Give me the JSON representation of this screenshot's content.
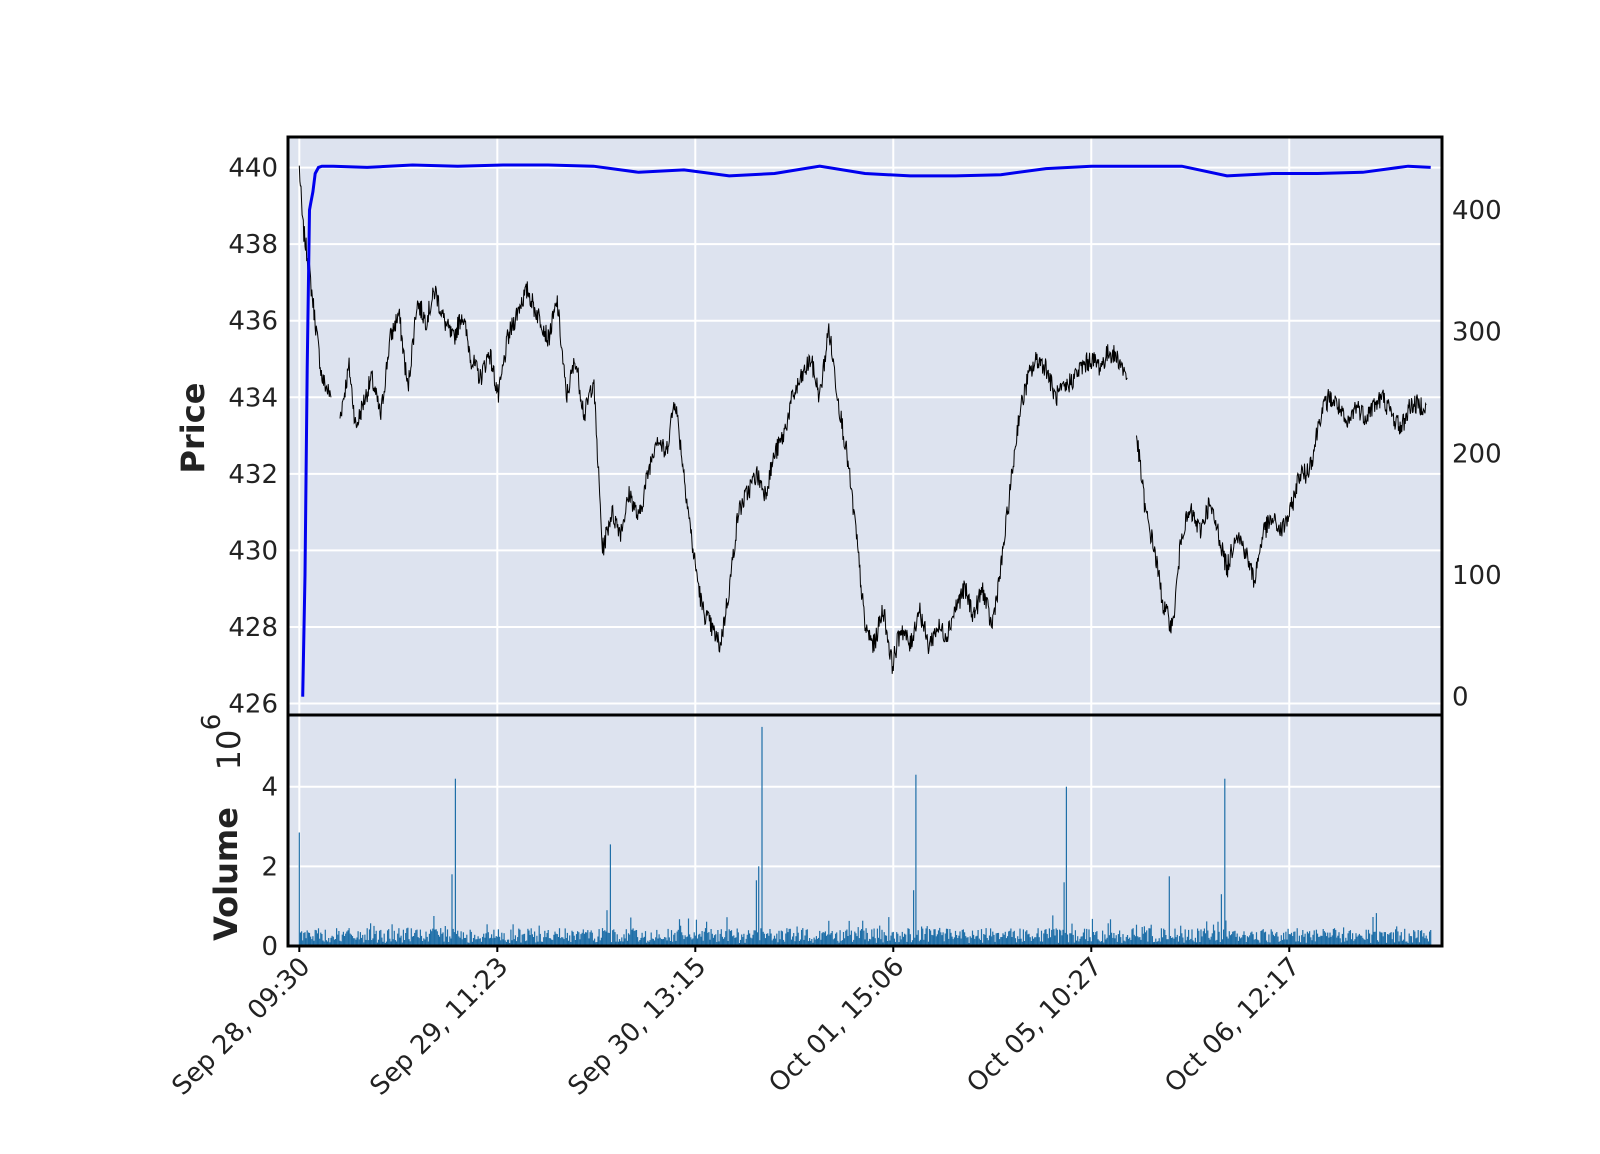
{
  "chart_data": {
    "type": "financial-line-volume",
    "background_color": "#ffffff",
    "panel_color": "#dde3ef",
    "grid": true,
    "grid_color": "#ffffff",
    "price_panel": {
      "ylabel": "Price",
      "ylim": [
        425.7,
        440.8
      ],
      "yticks": [
        426,
        428,
        430,
        432,
        434,
        436,
        438,
        440
      ],
      "ytick_labels": [
        "426",
        "428",
        "430",
        "432",
        "434",
        "436",
        "438",
        "440"
      ],
      "right_axis": {
        "ylim": [
          -15,
          460
        ],
        "yticks": [
          0,
          100,
          200,
          300,
          400
        ],
        "ytick_labels": [
          "0",
          "100",
          "200",
          "300",
          "400"
        ]
      },
      "series": [
        {
          "kind": "price",
          "color": "#000000",
          "axis": "left",
          "x": [
            0,
            3,
            8,
            14,
            20,
            28,
            36,
            44,
            50,
            56,
            64,
            72,
            80,
            88,
            96,
            104,
            112,
            120,
            128,
            136,
            144,
            152,
            160,
            168,
            176,
            184,
            190,
            196,
            202,
            208,
            214,
            220,
            228,
            236,
            244,
            252,
            260,
            268,
            276,
            284,
            292,
            300,
            308,
            316,
            324,
            332,
            340,
            348,
            356,
            364,
            372,
            380,
            388,
            396,
            404,
            412,
            420,
            428,
            436,
            444,
            452,
            460,
            468,
            476,
            484,
            492,
            500,
            508,
            516,
            524,
            532,
            540,
            548,
            556,
            564,
            572,
            580,
            588,
            596,
            604,
            612,
            620,
            628,
            636,
            644,
            652,
            660,
            668,
            676,
            684,
            692,
            700,
            708,
            716,
            724,
            732,
            740,
            748,
            756,
            764,
            772,
            780,
            788,
            796,
            804,
            812,
            820,
            828,
            836,
            844,
            852,
            860,
            868,
            876,
            884,
            890,
            896,
            902,
            910,
            918,
            926,
            934,
            942,
            950,
            958,
            966,
            974,
            982,
            996
          ],
          "y": [
            440.0,
            438.5,
            437.5,
            436.0,
            434.5,
            434.0,
            433.5,
            434.8,
            433.2,
            433.8,
            434.5,
            433.5,
            435.5,
            436.2,
            434.2,
            436.5,
            436.0,
            436.8,
            436.0,
            435.5,
            436.2,
            435.0,
            434.5,
            435.2,
            434.0,
            435.5,
            436.0,
            436.5,
            436.8,
            436.3,
            436.0,
            435.5,
            436.5,
            434.0,
            435.0,
            433.5,
            434.5,
            430.0,
            431.0,
            430.5,
            431.5,
            430.8,
            432.0,
            433.0,
            432.5,
            434.0,
            432.0,
            430.0,
            428.5,
            428.0,
            427.5,
            429.0,
            431.0,
            431.5,
            432.0,
            431.5,
            432.5,
            433.0,
            434.0,
            434.5,
            435.0,
            434.0,
            435.8,
            434.0,
            432.5,
            430.5,
            428.0,
            427.5,
            428.5,
            427.0,
            428.0,
            427.5,
            428.5,
            427.5,
            428.0,
            427.8,
            428.5,
            429.0,
            428.3,
            429.0,
            428.0,
            429.5,
            431.5,
            433.5,
            434.5,
            435.0,
            434.8,
            434.0,
            434.2,
            434.5,
            434.8,
            435.0,
            434.8,
            435.2,
            435.0,
            434.5,
            433.0,
            431.0,
            430.0,
            428.5,
            428.0,
            430.5,
            431.0,
            430.5,
            431.2,
            430.5,
            429.5,
            430.5,
            430.0,
            429.2,
            430.5,
            430.8,
            430.5,
            431.0,
            432.0,
            432.0,
            432.5,
            433.5,
            434.0,
            433.8,
            433.2,
            433.8,
            433.5,
            433.8,
            434.0,
            433.5,
            433.2,
            433.8,
            433.8
          ],
          "gaps_after": [
            5,
            95
          ]
        },
        {
          "kind": "moving-average",
          "color": "#0000ee",
          "axis": "right",
          "x": [
            3,
            5,
            7,
            9,
            10,
            12,
            14,
            17,
            20,
            30,
            60,
            100,
            140,
            180,
            220,
            260,
            300,
            340,
            380,
            420,
            460,
            500,
            540,
            580,
            620,
            660,
            700,
            740,
            780,
            820,
            860,
            900,
            940,
            980,
            1000
          ],
          "y": [
            0,
            100,
            270,
            400,
            405,
            415,
            430,
            435,
            436,
            436,
            435,
            437,
            436,
            437,
            437,
            436,
            431,
            433,
            428,
            430,
            436,
            430,
            428,
            428,
            429,
            434,
            436,
            436,
            436,
            428,
            430,
            430,
            431,
            436,
            435
          ]
        }
      ]
    },
    "volume_panel": {
      "ylabel": "Volume",
      "exponent_label": "10",
      "exponent_power": "6",
      "ylim": [
        0,
        5.8
      ],
      "yticks": [
        0,
        2,
        4
      ],
      "ytick_labels": [
        "0",
        "2",
        "4"
      ],
      "bar_color": "#1f6fa8",
      "spikes": [
        {
          "x": 0,
          "value": 2.85
        },
        {
          "x": 135,
          "value": 1.8
        },
        {
          "x": 138,
          "value": 4.2
        },
        {
          "x": 272,
          "value": 0.9
        },
        {
          "x": 275,
          "value": 2.55
        },
        {
          "x": 404,
          "value": 1.65
        },
        {
          "x": 406,
          "value": 2.0
        },
        {
          "x": 409,
          "value": 5.5
        },
        {
          "x": 543,
          "value": 1.4
        },
        {
          "x": 545,
          "value": 4.3
        },
        {
          "x": 676,
          "value": 1.6
        },
        {
          "x": 678,
          "value": 4.0
        },
        {
          "x": 769,
          "value": 1.75
        },
        {
          "x": 815,
          "value": 1.3
        },
        {
          "x": 818,
          "value": 4.2
        }
      ],
      "baseline_volume": [
        0.25,
        0.45
      ]
    },
    "x_axis": {
      "range": [
        -10,
        1010
      ],
      "tick_positions": [
        0,
        175,
        350,
        525,
        700,
        875
      ],
      "tick_labels": [
        "Sep 28, 09:30",
        "Sep 29, 11:23",
        "Sep 30, 13:15",
        "Oct 01, 15:06",
        "Oct 05, 10:27",
        "Oct 06, 12:17"
      ],
      "label_rotation": "45 degrees"
    }
  }
}
